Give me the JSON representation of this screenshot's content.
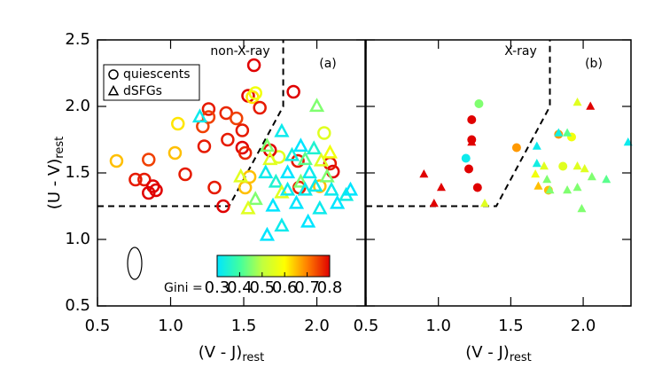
{
  "chart_data": {
    "type": "scatter",
    "xlabel": "(V - J)",
    "xlabel_sub": "rest",
    "ylabel": "(U - V)",
    "ylabel_sub": "rest",
    "xlim": [
      0.5,
      2.33
    ],
    "ylim": [
      0.5,
      2.5
    ],
    "xticks": [
      0.5,
      {
        "value": 1.0,
        "label": "1.0"
      },
      1.5,
      {
        "value": 2.0,
        "label": "2.0"
      }
    ],
    "yticks": [
      0.5,
      {
        "value": 1.0,
        "label": "1.0"
      },
      1.5,
      {
        "value": 2.0,
        "label": "2.0"
      },
      2.5
    ],
    "selection_box": {
      "x": [
        0.5,
        1.4,
        1.77,
        1.77
      ],
      "y": [
        1.25,
        1.25,
        2.0,
        2.5
      ]
    },
    "legend": [
      {
        "name": "quiescents",
        "shape": "circle"
      },
      {
        "name": "dSFGs",
        "shape": "triangle"
      }
    ],
    "colorbar": {
      "label": "Gini =",
      "lim": [
        0.3,
        0.8
      ],
      "ticks": [
        0.3,
        0.4,
        0.5,
        0.6,
        0.7,
        0.8
      ],
      "colors": [
        "#00e5ff",
        "#40ffa0",
        "#c0ff40",
        "#ffff00",
        "#ff8000",
        "#e00000"
      ]
    },
    "panels": [
      {
        "label": "non-X-ray",
        "tag": "(a)",
        "filled": false,
        "series": [
          {
            "marker": 0,
            "x": [
              0.63,
              0.85,
              0.76,
              0.82,
              0.88,
              0.9,
              0.85,
              1.03,
              1.05,
              1.1,
              1.22,
              1.26,
              1.26,
              1.23,
              1.3,
              1.36,
              1.38,
              1.39,
              1.45,
              1.49,
              1.49,
              1.53,
              1.57,
              1.56,
              1.58,
              1.61,
              1.51,
              1.54,
              1.51,
              1.84,
              1.87,
              1.88,
              2.11,
              2.09,
              1.74,
              2.05,
              2.02,
              1.68
            ],
            "y": [
              1.59,
              1.6,
              1.45,
              1.45,
              1.4,
              1.37,
              1.35,
              1.65,
              1.87,
              1.49,
              1.85,
              1.98,
              1.92,
              1.7,
              1.39,
              1.25,
              1.95,
              1.75,
              1.91,
              1.82,
              1.69,
              2.08,
              2.31,
              2.07,
              2.1,
              1.99,
              1.65,
              1.47,
              1.39,
              2.11,
              1.59,
              1.39,
              1.51,
              1.57,
              1.62,
              1.8,
              1.4,
              1.67
            ],
            "gini": [
              0.65,
              0.75,
              0.78,
              0.78,
              0.8,
              0.8,
              0.8,
              0.65,
              0.62,
              0.78,
              0.75,
              0.78,
              0.75,
              0.78,
              0.78,
              0.8,
              0.77,
              0.78,
              0.75,
              0.78,
              0.8,
              0.8,
              0.8,
              0.62,
              0.58,
              0.78,
              0.77,
              0.65,
              0.65,
              0.8,
              0.78,
              0.77,
              0.8,
              0.78,
              0.55,
              0.55,
              0.65,
              0.8
            ]
          },
          {
            "marker": 1,
            "x": [
              1.2,
              1.76,
              2.0,
              1.66,
              1.68,
              1.65,
              1.72,
              1.76,
              1.8,
              1.83,
              1.89,
              1.92,
              1.95,
              1.98,
              2.03,
              2.07,
              2.1,
              2.14,
              2.2,
              2.23,
              1.86,
              1.94,
              2.02,
              1.66,
              1.76,
              1.58,
              1.53,
              1.48,
              1.8,
              1.89,
              1.99,
              2.09,
              1.7,
              1.92
            ],
            "y": [
              1.92,
              1.81,
              2.0,
              1.7,
              1.6,
              1.5,
              1.43,
              1.35,
              1.5,
              1.63,
              1.7,
              1.6,
              1.5,
              1.68,
              1.59,
              1.47,
              1.37,
              1.27,
              1.33,
              1.37,
              1.27,
              1.13,
              1.23,
              1.03,
              1.1,
              1.3,
              1.23,
              1.47,
              1.37,
              1.43,
              1.4,
              1.65,
              1.25,
              1.37
            ],
            "gini": [
              0.32,
              0.32,
              0.45,
              0.45,
              0.55,
              0.32,
              0.35,
              0.55,
              0.3,
              0.33,
              0.3,
              0.42,
              0.32,
              0.35,
              0.55,
              0.45,
              0.32,
              0.3,
              0.33,
              0.3,
              0.3,
              0.3,
              0.32,
              0.3,
              0.32,
              0.45,
              0.55,
              0.55,
              0.32,
              0.45,
              0.32,
              0.58,
              0.3,
              0.32
            ]
          }
        ]
      },
      {
        "label": "X-ray",
        "tag": "(b)",
        "filled": true,
        "series": [
          {
            "marker": 0,
            "x": [
              1.28,
              1.23,
              1.23,
              1.19,
              1.21,
              1.27,
              1.54,
              1.83,
              1.92,
              1.86,
              1.76
            ],
            "y": [
              2.02,
              1.9,
              1.75,
              1.61,
              1.53,
              1.39,
              1.69,
              1.79,
              1.77,
              1.55,
              1.37
            ],
            "gini": [
              0.45,
              0.8,
              0.8,
              0.32,
              0.8,
              0.8,
              0.68,
              0.68,
              0.58,
              0.55,
              0.65
            ]
          },
          {
            "marker": 1,
            "x": [
              0.9,
              1.02,
              0.97,
              1.32,
              1.23,
              1.68,
              1.68,
              1.67,
              1.73,
              1.75,
              1.96,
              2.05,
              1.83,
              1.89,
              1.96,
              2.01,
              2.06,
              2.16,
              1.96,
              1.89,
              1.77,
              1.99,
              2.31,
              1.69
            ],
            "y": [
              1.49,
              1.39,
              1.27,
              1.27,
              1.73,
              1.7,
              1.57,
              1.49,
              1.55,
              1.45,
              2.03,
              2.0,
              1.8,
              1.8,
              1.55,
              1.53,
              1.47,
              1.45,
              1.39,
              1.37,
              1.37,
              1.23,
              1.73,
              1.4
            ],
            "gini": [
              0.8,
              0.8,
              0.8,
              0.55,
              0.8,
              0.32,
              0.33,
              0.58,
              0.55,
              0.45,
              0.55,
              0.8,
              0.33,
              0.42,
              0.55,
              0.55,
              0.45,
              0.42,
              0.45,
              0.45,
              0.45,
              0.45,
              0.32,
              0.65
            ]
          }
        ]
      }
    ]
  }
}
